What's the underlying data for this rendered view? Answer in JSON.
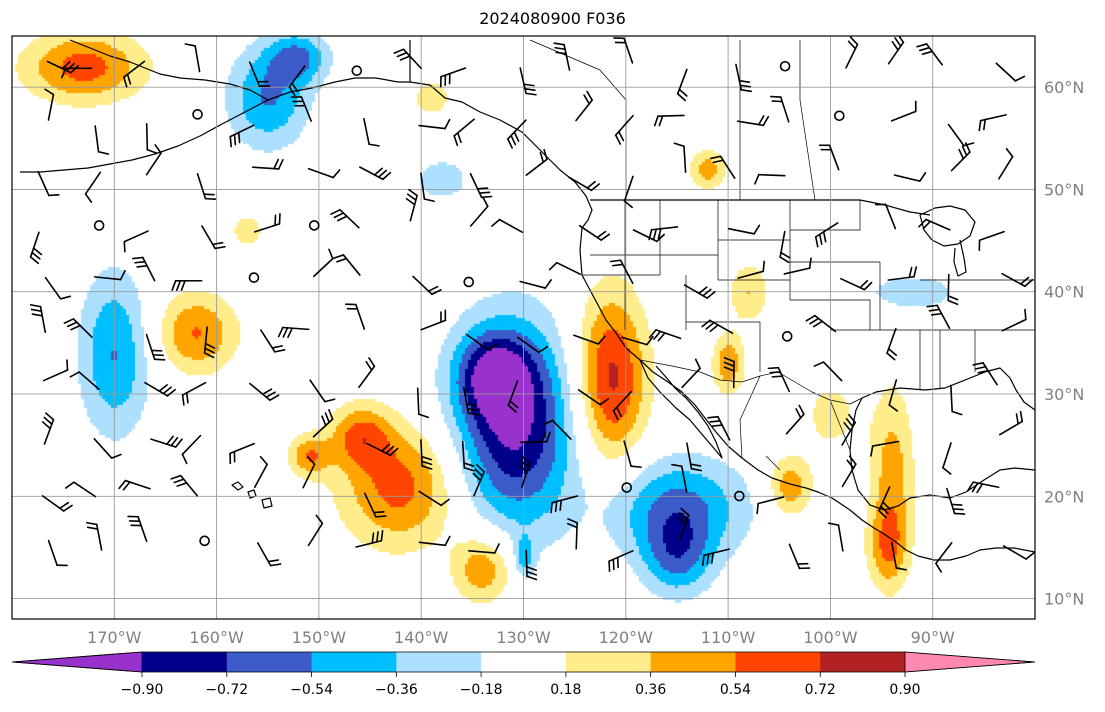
{
  "title": "2024080900 F036",
  "map": {
    "projection": "PlateCarree",
    "lon_range": [
      -180,
      -80
    ],
    "lat_range": [
      8,
      65
    ],
    "gridlines": true,
    "lon_labels": [
      {
        "lon": -170,
        "text": "170°W"
      },
      {
        "lon": -160,
        "text": "160°W"
      },
      {
        "lon": -150,
        "text": "150°W"
      },
      {
        "lon": -140,
        "text": "140°W"
      },
      {
        "lon": -130,
        "text": "130°W"
      },
      {
        "lon": -120,
        "text": "120°W"
      },
      {
        "lon": -110,
        "text": "110°W"
      },
      {
        "lon": -100,
        "text": "100°W"
      },
      {
        "lon": -90,
        "text": "90°W"
      }
    ],
    "lat_labels": [
      {
        "lat": 60,
        "text": "60°N"
      },
      {
        "lat": 50,
        "text": "50°N"
      },
      {
        "lat": 40,
        "text": "40°N"
      },
      {
        "lat": 30,
        "text": "30°N"
      },
      {
        "lat": 20,
        "text": "20°N"
      },
      {
        "lat": 10,
        "text": "10°N"
      }
    ]
  },
  "colorbar": {
    "ticks": [
      "−0.90",
      "−0.72",
      "−0.54",
      "−0.36",
      "−0.18",
      "0.18",
      "0.36",
      "0.54",
      "0.72",
      "0.90"
    ],
    "colors": {
      "under": "#9932CC",
      "bins": [
        "#00008B",
        "#3A5BC8",
        "#00BFFF",
        "#ADDFFF",
        "#FFFFFF",
        "#FFEC8B",
        "#FFA500",
        "#FF4500",
        "#B22222"
      ],
      "over": "#FF88B0"
    }
  },
  "chart_data": {
    "type": "heatmap",
    "levels": [
      -0.9,
      -0.72,
      -0.54,
      -0.36,
      -0.18,
      0.18,
      0.36,
      0.54,
      0.72,
      0.9
    ],
    "features": [
      {
        "lon": -131,
        "lat": 27,
        "rx": 6,
        "ry": 10,
        "peak": -0.95
      },
      {
        "lon": -133,
        "lat": 32,
        "rx": 3.5,
        "ry": 4,
        "peak": -0.6
      },
      {
        "lon": -121.5,
        "lat": 31.5,
        "rx": 3.5,
        "ry": 8.5,
        "peak": 0.8
      },
      {
        "lon": -115,
        "lat": 19,
        "rx": 7,
        "ry": 5,
        "peak": -0.58
      },
      {
        "lon": -115,
        "lat": 14,
        "rx": 3.5,
        "ry": 4,
        "peak": -0.5
      },
      {
        "lon": -170,
        "lat": 34,
        "rx": 3.5,
        "ry": 8,
        "peak": -0.55
      },
      {
        "lon": -142,
        "lat": 21,
        "rx": 6,
        "ry": 6,
        "peak": 0.62
      },
      {
        "lon": -146,
        "lat": 26,
        "rx": 3,
        "ry": 3,
        "peak": 0.5
      },
      {
        "lon": -134,
        "lat": 13,
        "rx": 3,
        "ry": 3.5,
        "peak": 0.55
      },
      {
        "lon": -162,
        "lat": 36,
        "rx": 4,
        "ry": 4,
        "peak": 0.55
      },
      {
        "lon": -151,
        "lat": 24,
        "rx": 2,
        "ry": 2,
        "peak": 0.5
      },
      {
        "lon": -173,
        "lat": 62,
        "rx": 6,
        "ry": 3.5,
        "peak": 0.62
      },
      {
        "lon": -155,
        "lat": 59,
        "rx": 4,
        "ry": 5,
        "peak": -0.55
      },
      {
        "lon": -152,
        "lat": 63,
        "rx": 3,
        "ry": 2.5,
        "peak": -0.5
      },
      {
        "lon": -110,
        "lat": 33,
        "rx": 1.6,
        "ry": 3,
        "peak": 0.5
      },
      {
        "lon": -108,
        "lat": 40,
        "rx": 2,
        "ry": 3,
        "peak": 0.36
      },
      {
        "lon": -112,
        "lat": 52,
        "rx": 1.8,
        "ry": 2,
        "peak": 0.45
      },
      {
        "lon": -104,
        "lat": 21,
        "rx": 2.2,
        "ry": 3,
        "peak": 0.5
      },
      {
        "lon": -94,
        "lat": 22,
        "rx": 2.2,
        "ry": 9,
        "peak": 0.45
      },
      {
        "lon": -94.5,
        "lat": 15,
        "rx": 2,
        "ry": 4,
        "peak": 0.4
      },
      {
        "lon": -138,
        "lat": 51,
        "rx": 2.5,
        "ry": 2,
        "peak": -0.35
      },
      {
        "lon": -92,
        "lat": 40,
        "rx": 5,
        "ry": 2,
        "peak": -0.3
      },
      {
        "lon": -139,
        "lat": 59,
        "rx": 2,
        "ry": 2,
        "peak": 0.3
      },
      {
        "lon": -157,
        "lat": 46,
        "rx": 1.5,
        "ry": 1.5,
        "peak": 0.35
      },
      {
        "lon": -130,
        "lat": 14,
        "rx": 1,
        "ry": 2,
        "peak": -0.4
      },
      {
        "lon": -100,
        "lat": 28,
        "rx": 3,
        "ry": 4,
        "peak": 0.25
      }
    ]
  }
}
